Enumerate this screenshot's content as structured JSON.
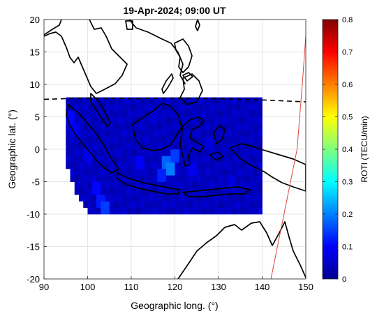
{
  "chart_data": {
    "type": "heatmap",
    "title": "19-Apr-2024; 09:00 UT",
    "xlabel": "Geographic long. (°)",
    "ylabel": "Geographic lat. (°)",
    "colorbar_label": "ROTI (TECU/min)",
    "xlim": [
      90,
      150
    ],
    "ylim": [
      -20,
      20
    ],
    "x_ticks": [
      90,
      100,
      110,
      120,
      130,
      140,
      150
    ],
    "y_ticks": [
      -20,
      -15,
      -10,
      -5,
      0,
      5,
      10,
      15,
      20
    ],
    "colorbar_ticks": [
      0,
      0.1,
      0.2,
      0.3,
      0.4,
      0.5,
      0.6,
      0.7,
      0.8
    ],
    "colorbar_range": [
      0,
      0.8
    ],
    "colormap": "jet",
    "grid": true,
    "roti_grid": {
      "lon_range": [
        95,
        140
      ],
      "lat_range": [
        -10,
        8
      ],
      "background_roti": 0.05,
      "hotspots": [
        {
          "lon": 104,
          "lat": -9,
          "roti": 0.2
        },
        {
          "lon": 103,
          "lat": -8,
          "roti": 0.16
        },
        {
          "lon": 119,
          "lat": -3,
          "roti": 0.27
        },
        {
          "lon": 118,
          "lat": -2,
          "roti": 0.24
        },
        {
          "lon": 120,
          "lat": -1,
          "roti": 0.2
        },
        {
          "lon": 117,
          "lat": -4,
          "roti": 0.17
        },
        {
          "lon": 96,
          "lat": 5,
          "roti": 0.14
        },
        {
          "lon": 97,
          "lat": 3,
          "roti": 0.12
        },
        {
          "lon": 100,
          "lat": -1,
          "roti": 0.12
        },
        {
          "lon": 102,
          "lat": -6,
          "roti": 0.14
        },
        {
          "lon": 112,
          "lat": -2,
          "roti": 0.13
        },
        {
          "lon": 124,
          "lat": -3,
          "roti": 0.12
        },
        {
          "lon": 128,
          "lat": 1,
          "roti": 0.1
        },
        {
          "lon": 133,
          "lat": -5,
          "roti": 0.1
        },
        {
          "lon": 115,
          "lat": 5,
          "roti": 0.09
        }
      ]
    },
    "magnetic_equator": [
      [
        90,
        7.7
      ],
      [
        100,
        7.9
      ],
      [
        110,
        7.8
      ],
      [
        120,
        7.9
      ],
      [
        130,
        7.8
      ],
      [
        140,
        7.6
      ],
      [
        150,
        7.3
      ]
    ],
    "red_line": [
      [
        142,
        -20
      ],
      [
        145,
        -10
      ],
      [
        148,
        0
      ],
      [
        149.2,
        10
      ],
      [
        150,
        17.5
      ]
    ]
  },
  "colors": {
    "magnetic_equator": "#000000",
    "red_line": "#d9463c",
    "coastline": "#000000",
    "grid": "#e6e6e6"
  }
}
